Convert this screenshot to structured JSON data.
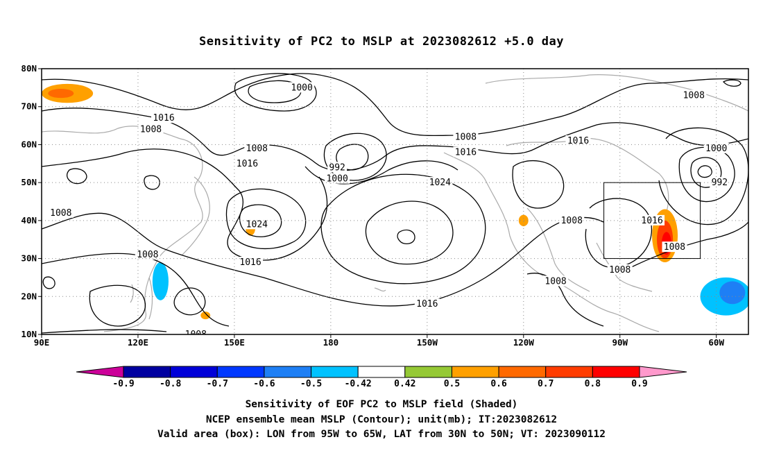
{
  "title": "Sensitivity of PC2 to MSLP at 2023082612 +5.0 day",
  "map": {
    "projection": "lat-lon",
    "lon_range": [
      90,
      310
    ],
    "lat_range": [
      10,
      80
    ],
    "lat_ticks": [
      {
        "value": 80,
        "label": "80N"
      },
      {
        "value": 70,
        "label": "70N"
      },
      {
        "value": 60,
        "label": "60N"
      },
      {
        "value": 50,
        "label": "50N"
      },
      {
        "value": 40,
        "label": "40N"
      },
      {
        "value": 30,
        "label": "30N"
      },
      {
        "value": 20,
        "label": "20N"
      },
      {
        "value": 10,
        "label": "10N"
      }
    ],
    "lon_ticks": [
      {
        "value": 90,
        "label": "90E"
      },
      {
        "value": 120,
        "label": "120E"
      },
      {
        "value": 150,
        "label": "150E"
      },
      {
        "value": 180,
        "label": "180"
      },
      {
        "value": 210,
        "label": "150W"
      },
      {
        "value": 240,
        "label": "120W"
      },
      {
        "value": 270,
        "label": "90W"
      },
      {
        "value": 300,
        "label": "60W"
      }
    ],
    "grid": true,
    "grid_style": "dotted",
    "valid_box": {
      "lon_min": 265,
      "lon_max": 295,
      "lat_min": 30,
      "lat_max": 50
    },
    "contour_labels": [
      {
        "text": "1000",
        "lon": 171,
        "lat": 75
      },
      {
        "text": "1008",
        "lon": 293,
        "lat": 73
      },
      {
        "text": "1016",
        "lon": 128,
        "lat": 67
      },
      {
        "text": "1008",
        "lon": 124,
        "lat": 64
      },
      {
        "text": "1008",
        "lon": 222,
        "lat": 62
      },
      {
        "text": "1016",
        "lon": 222,
        "lat": 58
      },
      {
        "text": "1016",
        "lon": 257,
        "lat": 61
      },
      {
        "text": "1008",
        "lon": 157,
        "lat": 59
      },
      {
        "text": "1016",
        "lon": 154,
        "lat": 55
      },
      {
        "text": "992",
        "lon": 182,
        "lat": 54
      },
      {
        "text": "1000",
        "lon": 182,
        "lat": 51
      },
      {
        "text": "1000",
        "lon": 300,
        "lat": 59
      },
      {
        "text": "1024",
        "lon": 214,
        "lat": 50
      },
      {
        "text": "992",
        "lon": 301,
        "lat": 50
      },
      {
        "text": "1008",
        "lon": 96,
        "lat": 42
      },
      {
        "text": "1024",
        "lon": 157,
        "lat": 39
      },
      {
        "text": "1008",
        "lon": 255,
        "lat": 40
      },
      {
        "text": "1016",
        "lon": 280,
        "lat": 40
      },
      {
        "text": "1016",
        "lon": 155,
        "lat": 29
      },
      {
        "text": "1008",
        "lon": 123,
        "lat": 31
      },
      {
        "text": "1008",
        "lon": 287,
        "lat": 33
      },
      {
        "text": "1008",
        "lon": 270,
        "lat": 27
      },
      {
        "text": "1008",
        "lon": 250,
        "lat": 24
      },
      {
        "text": "1016",
        "lon": 210,
        "lat": 18
      },
      {
        "text": "1008",
        "lon": 138,
        "lat": 10
      }
    ],
    "highs": [
      {
        "lon": 210,
        "lat": 36
      },
      {
        "lon": 155,
        "lat": 42
      }
    ],
    "lows": [
      {
        "lon": 180,
        "lat": 58
      },
      {
        "lon": 300,
        "lat": 53
      },
      {
        "lon": 175,
        "lat": 75
      }
    ],
    "shaded_regions": [
      {
        "name": "arctic-positive",
        "level": 0.5,
        "lon": 98,
        "lat": 73.5,
        "rx": 8,
        "ry": 2.5
      },
      {
        "name": "arctic-positive-core",
        "level": 0.6,
        "lon": 96,
        "lat": 73.5,
        "rx": 4,
        "ry": 1.2
      },
      {
        "name": "eastern-us-positive",
        "level": 0.5,
        "lon": 284,
        "lat": 36,
        "rx": 4,
        "ry": 7
      },
      {
        "name": "eastern-us-core",
        "level": 0.7,
        "lon": 284,
        "lat": 35,
        "rx": 2.5,
        "ry": 5
      },
      {
        "name": "eastern-us-peak",
        "level": 0.8,
        "lon": 284.5,
        "lat": 34,
        "rx": 1.5,
        "ry": 3
      },
      {
        "name": "japan-negative",
        "level": -0.5,
        "lon": 127,
        "lat": 24,
        "rx": 2.5,
        "ry": 5
      },
      {
        "name": "atlantic-negative",
        "level": -0.5,
        "lon": 303,
        "lat": 20,
        "rx": 8,
        "ry": 5
      },
      {
        "name": "atlantic-negative-core",
        "level": -0.6,
        "lon": 305,
        "lat": 21,
        "rx": 4,
        "ry": 3
      },
      {
        "name": "pacific-positive",
        "level": 0.5,
        "lon": 155,
        "lat": 38,
        "rx": 1.5,
        "ry": 2
      },
      {
        "name": "mid-pacific-positive",
        "level": 0.5,
        "lon": 141,
        "lat": 15,
        "rx": 1.5,
        "ry": 1
      },
      {
        "name": "east-pacific-positive",
        "level": 0.5,
        "lon": 240,
        "lat": 40,
        "rx": 1.5,
        "ry": 1.5
      }
    ]
  },
  "colorbar": {
    "levels": [
      "-0.9",
      "-0.8",
      "-0.7",
      "-0.6",
      "-0.5",
      "-0.42",
      "0.42",
      "0.5",
      "0.6",
      "0.7",
      "0.8",
      "0.9"
    ],
    "colors": [
      "#0000a0",
      "#0000d8",
      "#0038ff",
      "#1e7ff5",
      "#00c2ff",
      "#ffffff",
      "#95c935",
      "#ffa000",
      "#ff6900",
      "#ff3c00",
      "#ff0000"
    ],
    "low_end_color": "#cc0099",
    "high_end_color": "#ff99cc"
  },
  "captions": {
    "line1": "Sensitivity of EOF PC2 to MSLP field (Shaded)",
    "line2": "NCEP ensemble mean MSLP (Contour); unit(mb); IT:2023082612",
    "line3": "Valid area (box): LON from 95W to 65W, LAT from 30N to 50N; VT: 2023090112"
  }
}
